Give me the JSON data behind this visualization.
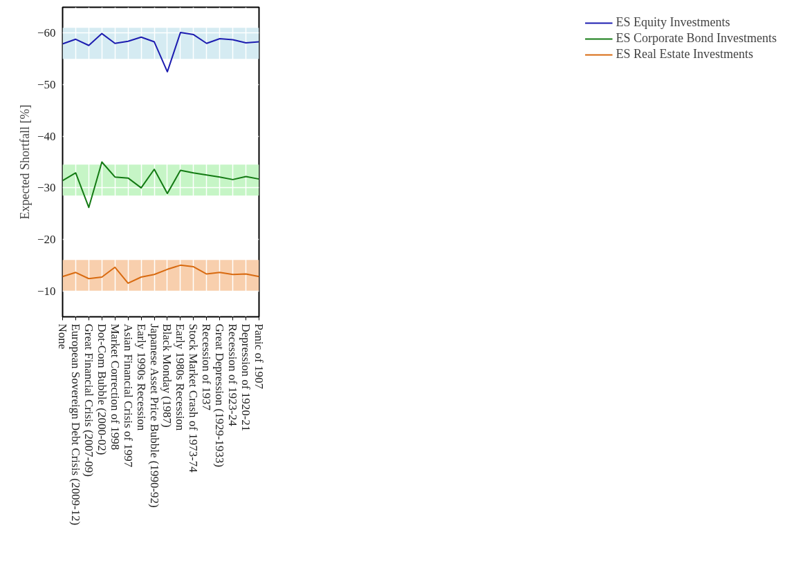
{
  "chart_data": {
    "type": "line",
    "ylabel": "Expected Shortfall [%]",
    "categories": [
      "None",
      "European Sovereign Debt Crisis (2009-12)",
      "Great Financial Crisis (2007-09)",
      "Dot-Com Bubble (2000-02)",
      "Market Correction of 1998",
      "Asian Financial Crisis of 1997",
      "Early 1990s Recession",
      "Japanese Asset Price Bubble (1990-92)",
      "Black Monday (1987)",
      "Early 1980s Recession",
      "Stock Market Crash of 1973-74",
      "Recession of 1937",
      "Great Depression (1929-1933)",
      "Recession of 1923-24",
      "Depression of 1920-21",
      "Panic of 1907"
    ],
    "series": [
      {
        "name": "ES Equity Investments",
        "color": "#1c1cb0",
        "values": [
          -57.9,
          -58.8,
          -57.6,
          -59.9,
          -58.0,
          -58.4,
          -59.2,
          -58.3,
          -52.5,
          -60.1,
          -59.7,
          -58.0,
          -58.9,
          -58.7,
          -58.1,
          -58.3
        ]
      },
      {
        "name": "ES Corporate Bond Investments",
        "color": "#137a13",
        "values": [
          -31.4,
          -32.9,
          -26.2,
          -35.0,
          -32.1,
          -31.9,
          -30.0,
          -33.6,
          -28.9,
          -33.4,
          -32.9,
          -32.5,
          -32.1,
          -31.6,
          -32.2,
          -31.7
        ]
      },
      {
        "name": "ES Real Estate Investments",
        "color": "#d86a10",
        "values": [
          -12.8,
          -13.6,
          -12.4,
          -12.7,
          -14.6,
          -11.5,
          -12.7,
          -13.2,
          -14.2,
          -15.0,
          -14.7,
          -13.3,
          -13.6,
          -13.2,
          -13.3,
          -12.8
        ]
      }
    ],
    "bands": [
      {
        "axis": "y",
        "from": -61,
        "to": -55,
        "color": "#d5ebf2"
      },
      {
        "axis": "y",
        "from": -34.5,
        "to": -28.5,
        "color": "#c6f5c6"
      },
      {
        "axis": "y",
        "from": -16,
        "to": -10,
        "color": "#f8cfad"
      }
    ],
    "ylim": [
      -5,
      -65
    ],
    "yticks": [
      -60,
      -50,
      -40,
      -30,
      -20,
      -10
    ],
    "grid": true,
    "legend": "top right",
    "line_style": "solid",
    "marker": "none"
  }
}
